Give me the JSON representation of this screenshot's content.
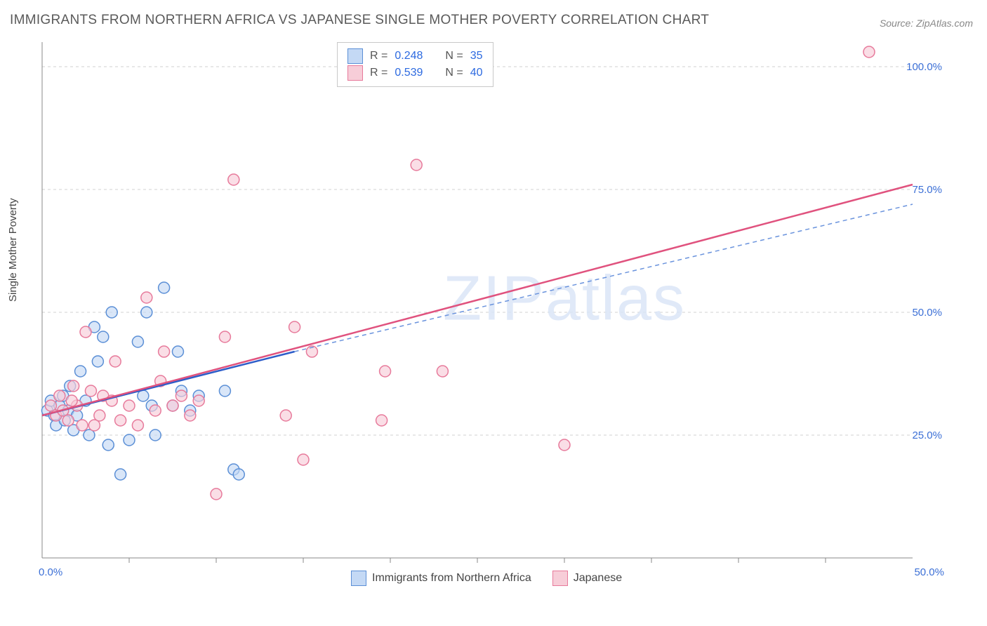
{
  "title": "IMMIGRANTS FROM NORTHERN AFRICA VS JAPANESE SINGLE MOTHER POVERTY CORRELATION CHART",
  "source": "Source: ZipAtlas.com",
  "watermark": "ZIPatlas",
  "ylabel": "Single Mother Poverty",
  "chart": {
    "type": "scatter",
    "xlim": [
      0,
      50
    ],
    "ylim": [
      0,
      105
    ],
    "ytick_labels": [
      "25.0%",
      "50.0%",
      "75.0%",
      "100.0%"
    ],
    "ytick_values": [
      25,
      50,
      75,
      100
    ],
    "x_axis_label_left": "0.0%",
    "x_axis_label_right": "50.0%",
    "x_minor_ticks": [
      5,
      10,
      15,
      20,
      25,
      30,
      35,
      40,
      45
    ],
    "grid_color": "#d0d0d0",
    "background_color": "#ffffff",
    "marker_radius": 8,
    "marker_stroke_width": 1.5,
    "series": [
      {
        "name": "Immigrants from Northern Africa",
        "fill": "#c4d9f5",
        "stroke": "#5b8fd6",
        "fill_opacity": 0.65,
        "R": "0.248",
        "N": "35",
        "trend": {
          "x1": 0,
          "y1": 29,
          "x2": 14.5,
          "y2": 42,
          "color": "#2d5dc9",
          "width": 2.5,
          "dash": "none"
        },
        "trend_ext": {
          "x1": 14.5,
          "y1": 42,
          "x2": 50,
          "y2": 72,
          "color": "#6a93dd",
          "width": 1.5,
          "dash": "6,5"
        },
        "points": [
          [
            0.3,
            30
          ],
          [
            0.5,
            32
          ],
          [
            0.7,
            29
          ],
          [
            0.8,
            27
          ],
          [
            1.0,
            31
          ],
          [
            1.2,
            33
          ],
          [
            1.3,
            28
          ],
          [
            1.5,
            30
          ],
          [
            1.6,
            35
          ],
          [
            1.8,
            26
          ],
          [
            2.0,
            29
          ],
          [
            2.2,
            38
          ],
          [
            2.5,
            32
          ],
          [
            2.7,
            25
          ],
          [
            3.0,
            47
          ],
          [
            3.2,
            40
          ],
          [
            3.5,
            45
          ],
          [
            3.8,
            23
          ],
          [
            4.0,
            50
          ],
          [
            4.5,
            17
          ],
          [
            5.0,
            24
          ],
          [
            5.5,
            44
          ],
          [
            5.8,
            33
          ],
          [
            6.0,
            50
          ],
          [
            6.5,
            25
          ],
          [
            7.0,
            55
          ],
          [
            7.5,
            31
          ],
          [
            8.0,
            34
          ],
          [
            8.5,
            30
          ],
          [
            9.0,
            33
          ],
          [
            10.5,
            34
          ],
          [
            11.0,
            18
          ],
          [
            11.3,
            17
          ],
          [
            7.8,
            42
          ],
          [
            6.3,
            31
          ]
        ]
      },
      {
        "name": "Japanese",
        "fill": "#f7cdd8",
        "stroke": "#e77a9b",
        "fill_opacity": 0.65,
        "R": "0.539",
        "N": "40",
        "trend": {
          "x1": 0,
          "y1": 29,
          "x2": 50,
          "y2": 76,
          "color": "#e0527e",
          "width": 2.5,
          "dash": "none"
        },
        "points": [
          [
            0.5,
            31
          ],
          [
            0.8,
            29
          ],
          [
            1.0,
            33
          ],
          [
            1.2,
            30
          ],
          [
            1.5,
            28
          ],
          [
            1.8,
            35
          ],
          [
            2.0,
            31
          ],
          [
            2.3,
            27
          ],
          [
            2.5,
            46
          ],
          [
            2.8,
            34
          ],
          [
            3.0,
            27
          ],
          [
            3.3,
            29
          ],
          [
            3.5,
            33
          ],
          [
            4.0,
            32
          ],
          [
            4.5,
            28
          ],
          [
            5.0,
            31
          ],
          [
            5.5,
            27
          ],
          [
            6.0,
            53
          ],
          [
            6.5,
            30
          ],
          [
            7.0,
            42
          ],
          [
            7.5,
            31
          ],
          [
            8.0,
            33
          ],
          [
            8.5,
            29
          ],
          [
            9.0,
            32
          ],
          [
            10.0,
            13
          ],
          [
            10.5,
            45
          ],
          [
            11.0,
            77
          ],
          [
            14.0,
            29
          ],
          [
            14.5,
            47
          ],
          [
            15.0,
            20
          ],
          [
            15.5,
            42
          ],
          [
            19.5,
            28
          ],
          [
            19.7,
            38
          ],
          [
            21.5,
            80
          ],
          [
            23.0,
            38
          ],
          [
            30.0,
            23
          ],
          [
            47.5,
            103
          ],
          [
            4.2,
            40
          ],
          [
            6.8,
            36
          ],
          [
            1.7,
            32
          ]
        ]
      }
    ]
  },
  "legend_bottom": {
    "items": [
      "Immigrants from Northern Africa",
      "Japanese"
    ]
  }
}
